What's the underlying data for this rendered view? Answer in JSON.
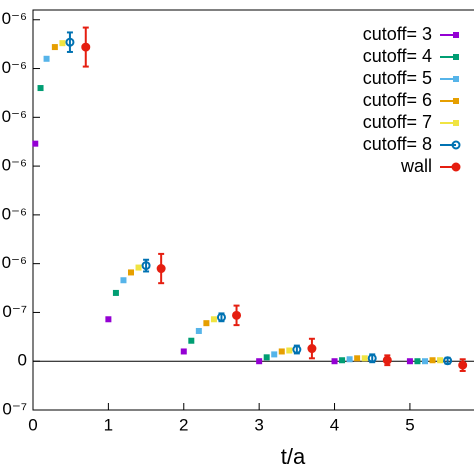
{
  "chart_data": {
    "type": "scatter",
    "xlabel": "t/a",
    "xlim": [
      0,
      5.85
    ],
    "xticks": [
      0,
      1,
      2,
      3,
      4,
      5
    ],
    "ylim": [
      -5e-07,
      3.6e-06
    ],
    "yticks": [
      {
        "value": -5e-07,
        "label": "0⁻⁷"
      },
      0,
      {
        "value": 5e-07,
        "label": "0⁻⁷"
      },
      {
        "value": 1e-06,
        "label": "0⁻⁶"
      },
      {
        "value": 1.5e-06,
        "label": "0⁻⁶"
      },
      {
        "value": 2e-06,
        "label": "0⁻⁶"
      },
      {
        "value": 2.5e-06,
        "label": "0⁻⁶"
      },
      {
        "value": 3e-06,
        "label": "0⁻⁶"
      },
      {
        "value": 3.5e-06,
        "label": "0⁻⁶"
      }
    ],
    "legend": "upper right",
    "series": [
      {
        "name": "cutoff= 3",
        "color": "#9400d3",
        "x": [
          0.03,
          1.0,
          2.0,
          3.0,
          4.0,
          5.0
        ],
        "values": [
          2.23e-06,
          4.3e-07,
          1e-07,
          0,
          0,
          0
        ]
      },
      {
        "name": "cutoff= 4",
        "color": "#009e73",
        "x": [
          0.1,
          1.1,
          2.1,
          3.1,
          4.1,
          5.1
        ],
        "values": [
          2.8e-06,
          7e-07,
          2.1e-07,
          4e-08,
          1e-08,
          0
        ]
      },
      {
        "name": "cutoff= 5",
        "color": "#56b4e9",
        "x": [
          0.18,
          1.2,
          2.2,
          3.2,
          4.2,
          5.2
        ],
        "values": [
          3.1e-06,
          8.3e-07,
          3.1e-07,
          7e-08,
          2e-08,
          0
        ]
      },
      {
        "name": "cutoff= 6",
        "color": "#e69f00",
        "x": [
          0.29,
          1.3,
          2.3,
          3.3,
          4.3,
          5.3
        ],
        "values": [
          3.22e-06,
          9.1e-07,
          3.9e-07,
          1e-07,
          3e-08,
          1e-08
        ]
      },
      {
        "name": "cutoff= 7",
        "color": "#f0e442",
        "x": [
          0.39,
          1.4,
          2.4,
          3.4,
          4.4,
          5.4
        ],
        "values": [
          3.26e-06,
          9.6e-07,
          4.3e-07,
          1.1e-07,
          3e-08,
          1e-08
        ]
      },
      {
        "name": "cutoff= 8",
        "color": "#0072b2",
        "x": [
          0.49,
          1.5,
          2.5,
          3.5,
          4.5,
          5.5
        ],
        "values": [
          3.27e-06,
          9.8e-07,
          4.5e-07,
          1.2e-07,
          3e-08,
          5e-09
        ],
        "errors": [
          1e-07,
          6e-08,
          4e-08,
          4e-08,
          4e-08,
          3e-08
        ]
      },
      {
        "name": "wall",
        "color": "#e51e10",
        "x": [
          0.7,
          1.7,
          2.7,
          3.7,
          4.7,
          5.7
        ],
        "values": [
          3.22e-06,
          9.5e-07,
          4.7e-07,
          1.3e-07,
          1e-08,
          -4e-08
        ],
        "errors": [
          2e-07,
          1.5e-07,
          1e-07,
          1e-07,
          5e-08,
          6e-08
        ]
      }
    ]
  }
}
